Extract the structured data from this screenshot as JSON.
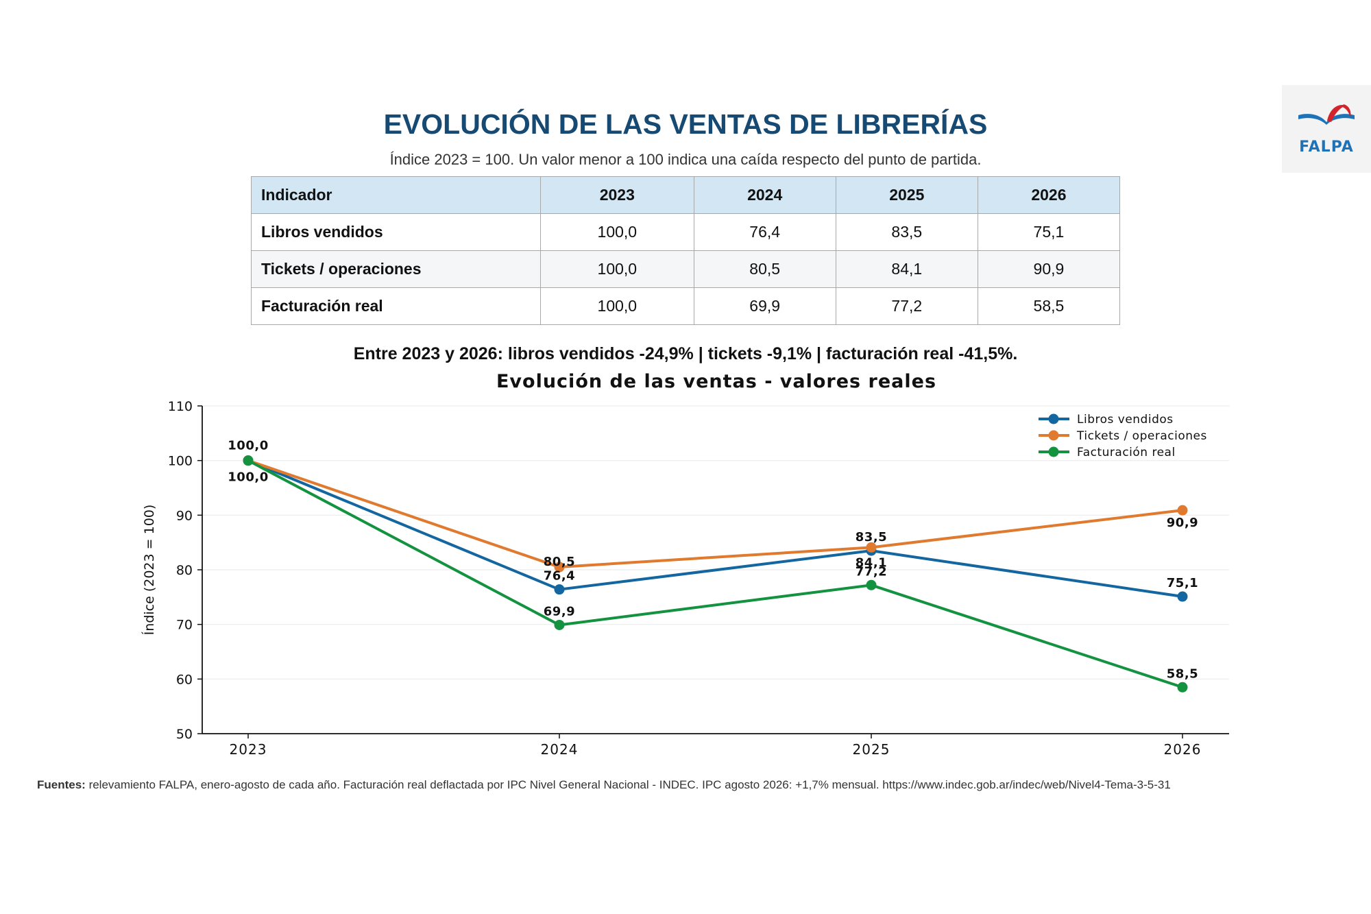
{
  "header": {
    "title": "EVOLUCIÓN DE LAS VENTAS DE LIBRERÍAS",
    "subtitle": "Índice 2023 = 100. Un valor menor a 100 indica una caída respecto del punto de partida.",
    "logo_text": "FALPA"
  },
  "table": {
    "headers": [
      "Indicador",
      "2023",
      "2024",
      "2025",
      "2026"
    ],
    "rows": [
      [
        "Libros vendidos",
        "100,0",
        "76,4",
        "83,5",
        "75,1"
      ],
      [
        "Tickets / operaciones",
        "100,0",
        "80,5",
        "84,1",
        "90,9"
      ],
      [
        "Facturación real",
        "100,0",
        "69,9",
        "77,2",
        "58,5"
      ]
    ]
  },
  "summary": "Entre 2023 y 2026: libros vendidos -24,9% | tickets -9,1% | facturación real -41,5%.",
  "chart_data": {
    "type": "line",
    "title": "Evolución de las ventas - valores reales",
    "ylabel": "Índice (2023 = 100)",
    "xlabel": "",
    "x": [
      "2023",
      "2024",
      "2025",
      "2026"
    ],
    "ylim": [
      50,
      110
    ],
    "yticks": [
      50,
      60,
      70,
      80,
      90,
      100,
      110
    ],
    "grid": "horizontal",
    "legend_position": "top-right",
    "series": [
      {
        "name": "Libros vendidos",
        "color": "#1366a0",
        "values": [
          100.0,
          76.4,
          83.5,
          75.1
        ],
        "labels": [
          "100,0",
          "76,4",
          "83,5",
          "75,1"
        ]
      },
      {
        "name": "Tickets / operaciones",
        "color": "#e07a2e",
        "values": [
          100.0,
          80.5,
          84.1,
          90.9
        ],
        "labels": [
          "100,0",
          "80,5",
          "84,1",
          "90,9"
        ]
      },
      {
        "name": "Facturación real",
        "color": "#139240",
        "values": [
          100.0,
          69.9,
          77.2,
          58.5
        ],
        "labels": [
          "100,0",
          "69,9",
          "77,2",
          "58,5"
        ]
      }
    ]
  },
  "footer": {
    "sources_label": "Fuentes:",
    "sources_text": " relevamiento FALPA, enero-agosto de cada año. Facturación real deflactada por IPC Nivel General Nacional - INDEC. IPC agosto 2026: +1,7% mensual. https://www.indec.gob.ar/indec/web/Nivel4-Tema-3-5-31"
  }
}
